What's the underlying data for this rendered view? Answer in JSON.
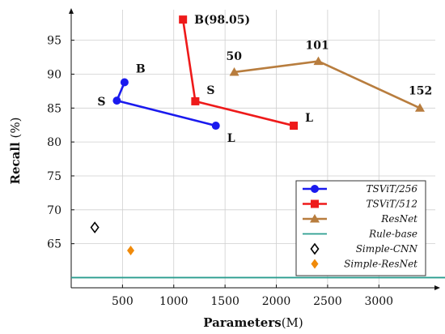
{
  "chart_data": {
    "type": "line",
    "xlabel": {
      "bold": "Parameters",
      "rest": "(M)"
    },
    "ylabel": {
      "bold": "Recall",
      "rest": " (%)"
    },
    "xlim": [
      0,
      3550
    ],
    "ylim": [
      58.5,
      99.5
    ],
    "xticks": [
      500,
      1000,
      1500,
      2000,
      2500,
      3000
    ],
    "yticks": [
      65,
      70,
      75,
      80,
      85,
      90,
      95
    ],
    "grid": true,
    "legend_position": "bottom-right",
    "series": [
      {
        "name": "TSViT/256",
        "kind": "line",
        "marker": "circle",
        "color": "#1a1aee",
        "points": [
          [
            520,
            88.8
          ],
          [
            445,
            86.1
          ],
          [
            1410,
            82.4
          ]
        ],
        "point_labels": [
          {
            "text": "B",
            "dx": 14,
            "dy": -12
          },
          {
            "text": "S",
            "dx": -24,
            "dy": 6
          },
          {
            "text": "L",
            "dx": 14,
            "dy": 20
          }
        ]
      },
      {
        "name": "TSViT/512",
        "kind": "line",
        "marker": "square",
        "color": "#ee1a1a",
        "points": [
          [
            1090,
            98.05
          ],
          [
            1210,
            86.0
          ],
          [
            2170,
            82.4
          ]
        ],
        "point_labels": [
          {
            "text": "B(98.05)",
            "dx": 14,
            "dy": 5
          },
          {
            "text": "S",
            "dx": 14,
            "dy": -9
          },
          {
            "text": "L",
            "dx": 14,
            "dy": -5
          }
        ]
      },
      {
        "name": "ResNet",
        "kind": "line",
        "marker": "triangle",
        "color": "#b87d3e",
        "points": [
          [
            1590,
            90.3
          ],
          [
            2410,
            91.9
          ],
          [
            3400,
            85.0
          ]
        ],
        "point_labels": [
          {
            "text": "50",
            "dx": -10,
            "dy": -15
          },
          {
            "text": "101",
            "dx": -16,
            "dy": -15
          },
          {
            "text": "152",
            "dx": -14,
            "dy": -17
          }
        ]
      },
      {
        "name": "Rule-base",
        "kind": "hline",
        "color": "#2a9d8f",
        "y": 60.0
      },
      {
        "name": "Simple-CNN",
        "kind": "point",
        "marker": "diamond-open",
        "color": "#000000",
        "points": [
          [
            230,
            67.4
          ]
        ]
      },
      {
        "name": "Simple-ResNet",
        "kind": "point",
        "marker": "diamond",
        "color": "#f08a0a",
        "points": [
          [
            580,
            64.0
          ]
        ]
      }
    ]
  }
}
